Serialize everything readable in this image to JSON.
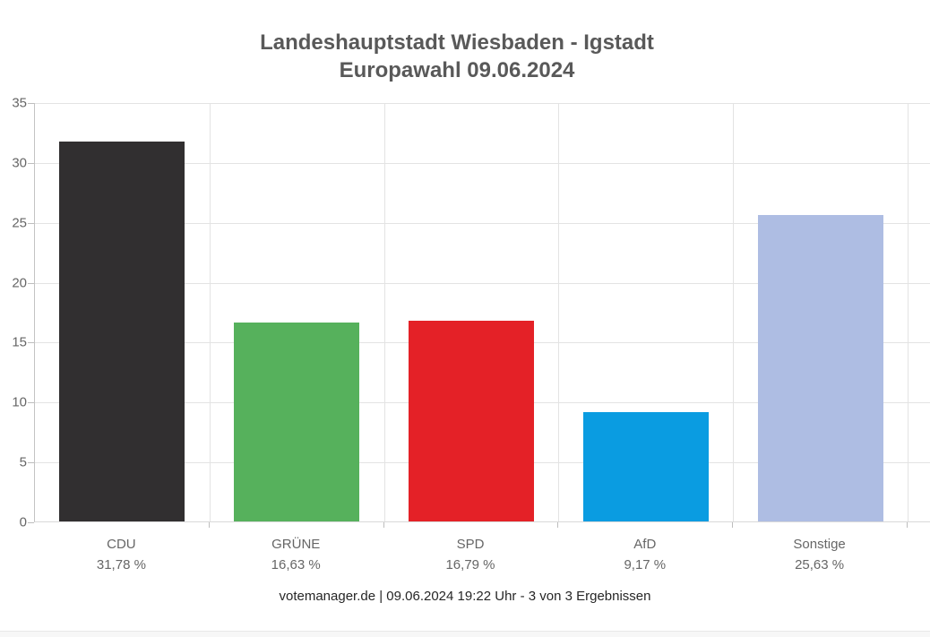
{
  "chart_data": {
    "type": "bar",
    "title": "Landeshauptstadt Wiesbaden - Igstadt",
    "subtitle": "Europawahl 09.06.2024",
    "categories": [
      "CDU",
      "GRÜNE",
      "SPD",
      "AfD",
      "Sonstige"
    ],
    "values": [
      31.78,
      16.63,
      16.79,
      9.17,
      25.63
    ],
    "value_labels": [
      "31,78 %",
      "16,63 %",
      "16,79 %",
      "9,17 %",
      "25,63 %"
    ],
    "bar_colors": [
      "#312f30",
      "#56b15c",
      "#e42127",
      "#0a9ce1",
      "#aebde3"
    ],
    "ylim": [
      0,
      35
    ],
    "yticks": [
      0,
      5,
      10,
      15,
      20,
      25,
      30,
      35
    ],
    "xlabel": "",
    "ylabel": "",
    "grid": true,
    "legend_position": "none",
    "footer": "votemanager.de | 09.06.2024 19:22 Uhr - 3 von 3 Ergebnissen"
  },
  "colors": {
    "title_text": "#595959",
    "axis_text": "#666666",
    "footer_text": "#262626",
    "gridline": "#e3e3e3"
  }
}
